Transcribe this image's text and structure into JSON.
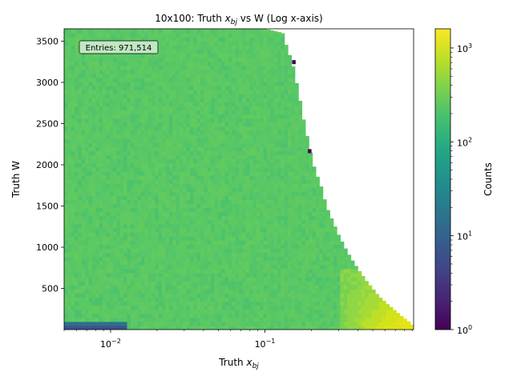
{
  "chart_data": {
    "type": "heatmap",
    "title": "10x100: Truth x_bj vs W (Log x-axis)",
    "title_parts": {
      "prefix": "10x100: Truth ",
      "var": "x",
      "sub": "bj",
      "suffix": " vs W (Log x-axis)"
    },
    "xlabel": "Truth x_bj",
    "xlabel_parts": {
      "prefix": "Truth ",
      "var": "x",
      "sub": "bj"
    },
    "ylabel": "Truth W",
    "x_scale": "log",
    "xlim": [
      0.005,
      0.92
    ],
    "ylim": [
      0,
      3650
    ],
    "x_ticks": [
      {
        "value": 0.01,
        "base": "10",
        "exp": "−2"
      },
      {
        "value": 0.1,
        "base": "10",
        "exp": "−1"
      }
    ],
    "y_ticks": [
      {
        "value": 500,
        "label": "500"
      },
      {
        "value": 1000,
        "label": "1000"
      },
      {
        "value": 1500,
        "label": "1500"
      },
      {
        "value": 2000,
        "label": "2000"
      },
      {
        "value": 2500,
        "label": "2500"
      },
      {
        "value": 3000,
        "label": "3000"
      },
      {
        "value": 3500,
        "label": "3500"
      }
    ],
    "kinematic_boundary": [
      [
        0.1,
        3650
      ],
      [
        0.13,
        3600
      ],
      [
        0.14,
        3400
      ],
      [
        0.15,
        3250
      ],
      [
        0.16,
        3000
      ],
      [
        0.17,
        2750
      ],
      [
        0.18,
        2500
      ],
      [
        0.19,
        2300
      ],
      [
        0.2,
        2100
      ],
      [
        0.21,
        1950
      ],
      [
        0.23,
        1750
      ],
      [
        0.25,
        1500
      ],
      [
        0.27,
        1350
      ],
      [
        0.3,
        1150
      ],
      [
        0.34,
        950
      ],
      [
        0.38,
        800
      ],
      [
        0.45,
        600
      ],
      [
        0.55,
        400
      ],
      [
        0.65,
        280
      ],
      [
        0.75,
        180
      ],
      [
        0.85,
        100
      ],
      [
        0.92,
        40
      ]
    ],
    "annotation": "Entries: 971,514",
    "colorbar": {
      "label": "Counts",
      "scale": "log",
      "range": [
        1,
        1600
      ],
      "colormap": "viridis",
      "ticks": [
        {
          "value": 1,
          "base": "10",
          "exp": "0"
        },
        {
          "value": 10,
          "base": "10",
          "exp": "1"
        },
        {
          "value": 100,
          "base": "10",
          "exp": "2"
        },
        {
          "value": 1000,
          "base": "10",
          "exp": "3"
        }
      ]
    },
    "colors": {
      "bulk": "#5ec962",
      "low_x_band": "#3b528b",
      "high_x_low_w": "#dde318",
      "outlier": "#440154"
    }
  }
}
